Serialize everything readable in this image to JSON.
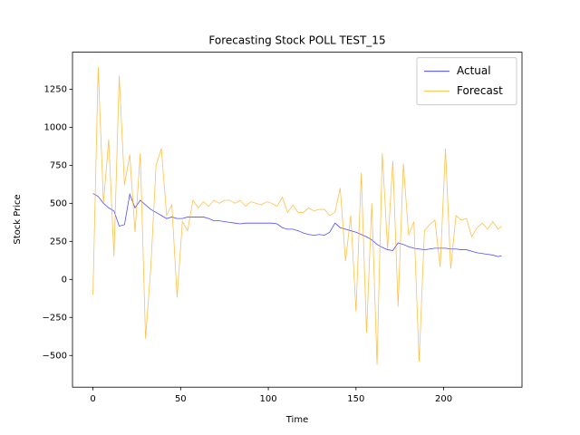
{
  "chart_data": {
    "type": "line",
    "title": "Forecasting Stock POLL TEST_15",
    "x_label": "Time",
    "y_label": "Stock Price",
    "x": [
      0,
      3,
      6,
      9,
      12,
      15,
      18,
      21,
      24,
      27,
      30,
      33,
      36,
      39,
      42,
      45,
      48,
      51,
      54,
      57,
      60,
      63,
      66,
      69,
      72,
      75,
      78,
      81,
      84,
      87,
      90,
      93,
      96,
      99,
      102,
      105,
      108,
      111,
      114,
      117,
      120,
      123,
      126,
      129,
      132,
      135,
      138,
      141,
      144,
      147,
      150,
      153,
      156,
      159,
      162,
      165,
      168,
      171,
      174,
      177,
      180,
      183,
      186,
      189,
      192,
      195,
      198,
      201,
      204,
      207,
      210,
      213,
      216,
      219,
      222,
      225,
      228,
      231,
      233
    ],
    "series": [
      {
        "name": "Actual",
        "color": "#0000ff",
        "values": [
          565,
          545,
          500,
          470,
          450,
          350,
          360,
          560,
          470,
          520,
          490,
          460,
          440,
          420,
          400,
          410,
          400,
          400,
          410,
          410,
          410,
          410,
          400,
          385,
          385,
          380,
          375,
          370,
          365,
          370,
          370,
          370,
          370,
          370,
          370,
          365,
          340,
          330,
          330,
          320,
          305,
          295,
          290,
          295,
          290,
          310,
          370,
          340,
          330,
          320,
          310,
          295,
          280,
          260,
          230,
          210,
          195,
          190,
          240,
          230,
          215,
          205,
          200,
          195,
          200,
          205,
          205,
          205,
          200,
          200,
          195,
          195,
          185,
          175,
          170,
          165,
          160,
          150,
          155
        ]
      },
      {
        "name": "Forecast",
        "color": "#ffa500",
        "values": [
          -100,
          1395,
          500,
          920,
          150,
          1340,
          620,
          820,
          310,
          830,
          -390,
          80,
          750,
          860,
          420,
          490,
          -120,
          380,
          320,
          520,
          470,
          510,
          480,
          520,
          500,
          520,
          520,
          500,
          520,
          480,
          510,
          500,
          490,
          510,
          500,
          480,
          540,
          440,
          490,
          440,
          440,
          470,
          450,
          460,
          460,
          420,
          440,
          600,
          120,
          420,
          -210,
          700,
          -350,
          500,
          -560,
          830,
          200,
          780,
          -180,
          760,
          290,
          380,
          -540,
          320,
          360,
          390,
          80,
          860,
          70,
          420,
          390,
          400,
          280,
          340,
          370,
          330,
          380,
          330,
          350
        ]
      }
    ],
    "xlim": [
      -11.65,
      244.65
    ],
    "xticks": [
      0,
      50,
      100,
      150,
      200
    ],
    "ylim": [
      -708,
      1493
    ],
    "yticks": [
      {
        "value": -500,
        "label": "−500"
      },
      {
        "value": -250,
        "label": "−250"
      },
      0,
      250,
      500,
      750,
      1000,
      1250
    ],
    "legend": "upper right"
  }
}
